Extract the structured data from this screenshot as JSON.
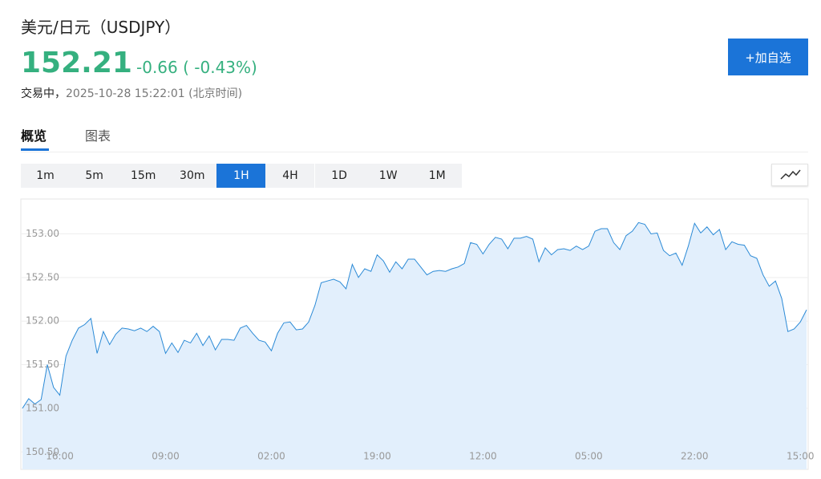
{
  "header": {
    "title": "美元/日元（USDJPY）",
    "price": "152.21",
    "change": "-0.66",
    "change_percent": "( -0.43%)",
    "status": "交易中，",
    "timestamp": "2025-10-28 15:22:01 (北京时间)",
    "watch_button": "+加自选"
  },
  "tabs": [
    "概览",
    "图表"
  ],
  "intervals": [
    "1m",
    "5m",
    "15m",
    "30m",
    "1H",
    "4H",
    "1D",
    "1W",
    "1M"
  ],
  "chart_data": {
    "type": "area",
    "color": "#2b8ad6",
    "fill": "#e2effc",
    "grid": true,
    "categories": [
      null,
      null,
      null,
      null,
      null,
      null,
      "16:00",
      null,
      null,
      null,
      null,
      null,
      null,
      null,
      null,
      null,
      null,
      null,
      null,
      null,
      null,
      null,
      null,
      "09:00",
      null,
      null,
      null,
      null,
      null,
      null,
      null,
      null,
      null,
      null,
      null,
      null,
      null,
      null,
      null,
      null,
      "02:00",
      null,
      null,
      null,
      null,
      null,
      null,
      null,
      null,
      null,
      null,
      null,
      null,
      null,
      null,
      null,
      null,
      "19:00",
      null,
      null,
      null,
      null,
      null,
      null,
      null,
      null,
      null,
      null,
      null,
      null,
      null,
      null,
      null,
      null,
      "12:00",
      null,
      null,
      null,
      null,
      null,
      null,
      null,
      null,
      null,
      null,
      null,
      null,
      null,
      null,
      null,
      null,
      "05:00",
      null,
      null,
      null,
      null,
      null,
      null,
      null,
      null,
      null,
      null,
      null,
      null,
      null,
      null,
      null,
      null,
      "22:00",
      null,
      null,
      null,
      null,
      null,
      null,
      null,
      null,
      null,
      null,
      null,
      null,
      null,
      null,
      null,
      null,
      "15:00",
      null
    ],
    "values": [
      151.0,
      151.11,
      151.05,
      151.1,
      151.5,
      151.24,
      151.15,
      151.6,
      151.78,
      151.92,
      151.96,
      152.03,
      151.63,
      151.88,
      151.73,
      151.85,
      151.92,
      151.91,
      151.89,
      151.92,
      151.88,
      151.94,
      151.88,
      151.63,
      151.75,
      151.64,
      151.78,
      151.75,
      151.86,
      151.72,
      151.83,
      151.67,
      151.79,
      151.79,
      151.78,
      151.92,
      151.95,
      151.86,
      151.78,
      151.76,
      151.66,
      151.86,
      151.98,
      151.99,
      151.9,
      151.91,
      151.99,
      152.18,
      152.44,
      152.46,
      152.48,
      152.45,
      152.37,
      152.65,
      152.5,
      152.6,
      152.57,
      152.76,
      152.69,
      152.56,
      152.68,
      152.6,
      152.71,
      152.71,
      152.62,
      152.53,
      152.57,
      152.58,
      152.57,
      152.6,
      152.62,
      152.66,
      152.9,
      152.88,
      152.77,
      152.88,
      152.96,
      152.94,
      152.83,
      152.95,
      152.95,
      152.97,
      152.94,
      152.68,
      152.84,
      152.76,
      152.82,
      152.83,
      152.81,
      152.86,
      152.82,
      152.86,
      153.03,
      153.06,
      153.06,
      152.9,
      152.82,
      152.98,
      153.03,
      153.13,
      153.11,
      153.0,
      153.01,
      152.81,
      152.75,
      152.78,
      152.64,
      152.86,
      153.12,
      153.01,
      153.08,
      152.99,
      153.05,
      152.82,
      152.91,
      152.88,
      152.87,
      152.75,
      152.72,
      152.53,
      152.4,
      152.46,
      152.26,
      151.88,
      151.91,
      151.99,
      152.13
    ],
    "ylim": [
      150.3,
      153.4
    ],
    "yticks": [
      {
        "value": 150.5,
        "label": "150.50"
      },
      {
        "value": 151,
        "label": "151.00"
      },
      {
        "value": 151.5,
        "label": "151.50"
      },
      {
        "value": 152,
        "label": "152.00"
      },
      {
        "value": 152.5,
        "label": "152.50"
      },
      {
        "value": 153,
        "label": "153.00"
      }
    ]
  }
}
